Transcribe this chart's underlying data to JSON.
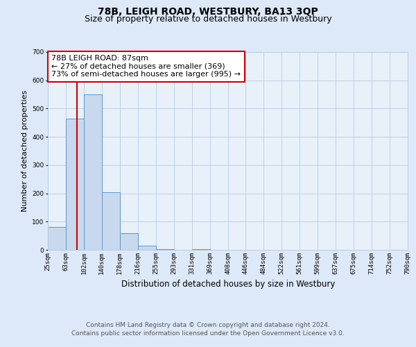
{
  "title": "78B, LEIGH ROAD, WESTBURY, BA13 3QP",
  "subtitle": "Size of property relative to detached houses in Westbury",
  "xlabel": "Distribution of detached houses by size in Westbury",
  "ylabel": "Number of detached properties",
  "bin_labels": [
    "25sqm",
    "63sqm",
    "102sqm",
    "140sqm",
    "178sqm",
    "216sqm",
    "255sqm",
    "293sqm",
    "331sqm",
    "369sqm",
    "408sqm",
    "446sqm",
    "484sqm",
    "522sqm",
    "561sqm",
    "599sqm",
    "637sqm",
    "675sqm",
    "714sqm",
    "752sqm",
    "790sqm"
  ],
  "bar_heights": [
    80,
    465,
    550,
    205,
    58,
    15,
    3,
    0,
    3,
    0,
    0,
    0,
    0,
    0,
    0,
    0,
    0,
    0,
    0,
    0
  ],
  "bar_color": "#c8d9ee",
  "bar_edge_color": "#6096c8",
  "ylim": [
    0,
    700
  ],
  "yticks": [
    0,
    100,
    200,
    300,
    400,
    500,
    600,
    700
  ],
  "vline_color": "#cc0000",
  "vline_position": 1.615,
  "annotation_line1": "78B LEIGH ROAD: 87sqm",
  "annotation_line2": "← 27% of detached houses are smaller (369)",
  "annotation_line3": "73% of semi-detached houses are larger (995) →",
  "bg_color": "#dde8f8",
  "plot_bg_color": "#e8f0fa",
  "grid_color": "#b8cce4",
  "footer_line1": "Contains HM Land Registry data © Crown copyright and database right 2024.",
  "footer_line2": "Contains public sector information licensed under the Open Government Licence v3.0.",
  "title_fontsize": 10,
  "subtitle_fontsize": 9,
  "annotation_fontsize": 8,
  "tick_fontsize": 6.5,
  "ylabel_fontsize": 8,
  "xlabel_fontsize": 8.5,
  "footer_fontsize": 6.5
}
